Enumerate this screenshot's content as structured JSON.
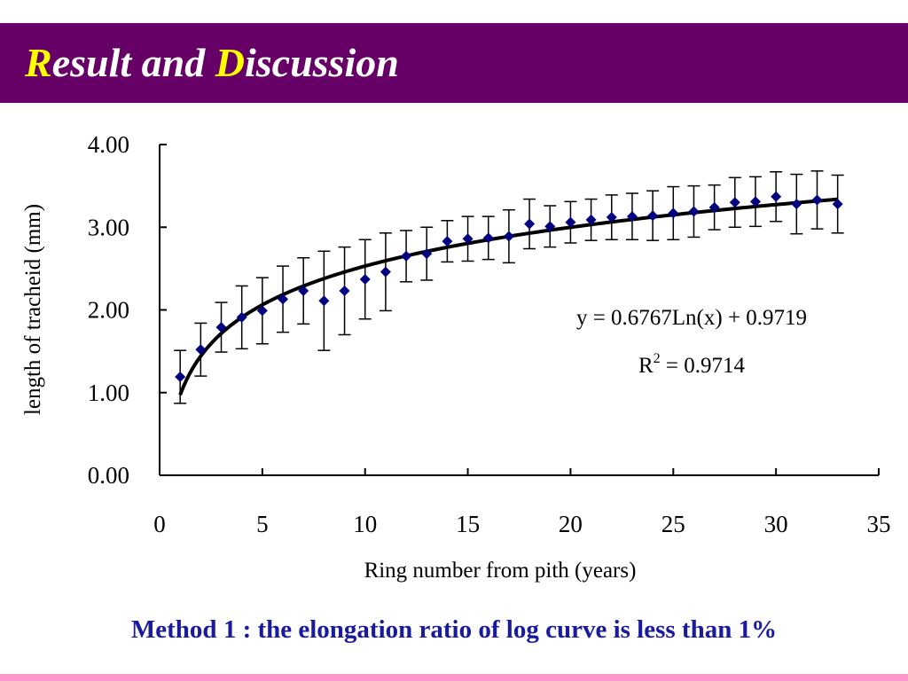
{
  "title": {
    "cap1": "R",
    "part1": "esult and ",
    "cap2": "D",
    "part2": "iscussion"
  },
  "caption": "Method 1 : the elongation ratio of log curve is less than 1%",
  "colors": {
    "title_bar": "#660066",
    "title_caps": "#ffff00",
    "title_text": "#ffffff",
    "caption": "#1a1a9c",
    "bottom_band": "#ff99cc",
    "marker": "#000080",
    "fit_line": "#000000"
  },
  "chart_data": {
    "type": "scatter",
    "xlabel": "Ring number from pith (years)",
    "ylabel": "length of tracheid (mm)",
    "xlim": [
      0,
      35
    ],
    "ylim": [
      0,
      4
    ],
    "x_ticks": [
      0,
      5,
      10,
      15,
      20,
      25,
      30,
      35
    ],
    "y_ticks": [
      0,
      1,
      2,
      3,
      4
    ],
    "y_tick_labels": [
      "0.00",
      "1.00",
      "2.00",
      "3.00",
      "4.00"
    ],
    "grid": false,
    "series": [
      {
        "marker": "diamond",
        "x": [
          1,
          2,
          3,
          4,
          5,
          6,
          7,
          8,
          9,
          10,
          11,
          12,
          13,
          14,
          15,
          16,
          17,
          18,
          19,
          20,
          21,
          22,
          23,
          24,
          25,
          26,
          27,
          28,
          29,
          30,
          31,
          32,
          33
        ],
        "y": [
          1.19,
          1.52,
          1.79,
          1.91,
          1.99,
          2.13,
          2.23,
          2.11,
          2.23,
          2.37,
          2.46,
          2.65,
          2.68,
          2.83,
          2.86,
          2.87,
          2.89,
          3.04,
          3.01,
          3.06,
          3.09,
          3.12,
          3.13,
          3.14,
          3.17,
          3.19,
          3.24,
          3.3,
          3.31,
          3.37,
          3.28,
          3.33,
          3.28
        ],
        "err": [
          0.32,
          0.32,
          0.3,
          0.38,
          0.4,
          0.4,
          0.4,
          0.6,
          0.53,
          0.48,
          0.47,
          0.31,
          0.32,
          0.25,
          0.27,
          0.26,
          0.32,
          0.3,
          0.25,
          0.25,
          0.25,
          0.27,
          0.28,
          0.3,
          0.32,
          0.31,
          0.27,
          0.3,
          0.3,
          0.3,
          0.36,
          0.35,
          0.35
        ]
      }
    ],
    "trendline": {
      "type": "log",
      "a": 0.6767,
      "b": 0.9719,
      "x_from": 1,
      "x_to": 33
    },
    "annotations": {
      "equation": "y = 0.6767Ln(x) + 0.9719",
      "r2_prefix": "R",
      "r2_sup": "2",
      "r2_value": " = 0.9714"
    }
  }
}
